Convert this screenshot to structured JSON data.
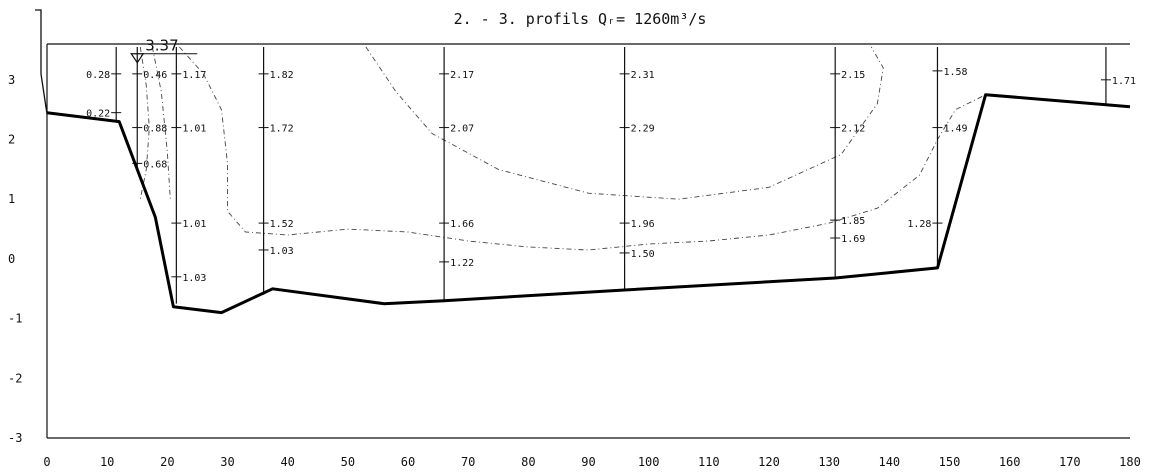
{
  "chart_data": {
    "type": "line",
    "title": "2. - 3. profils Qᵣ= 1260m³/s",
    "xlabel": "",
    "ylabel": "",
    "xlim": [
      0,
      180
    ],
    "ylim": [
      -3,
      3.6
    ],
    "x_ticks": [
      "0",
      "10",
      "20",
      "30",
      "40",
      "50",
      "60",
      "70",
      "80",
      "90",
      "100",
      "110",
      "120",
      "130",
      "140",
      "150",
      "160",
      "170",
      "180"
    ],
    "y_ticks": [
      "3",
      "2",
      "1",
      "0",
      "-1",
      "-2",
      "-3"
    ],
    "water_level": {
      "x": 15,
      "y": 3.37,
      "label": "3.37"
    },
    "bed_profile": [
      {
        "x": 0,
        "y": 2.45
      },
      {
        "x": 12,
        "y": 2.3
      },
      {
        "x": 18,
        "y": 0.7
      },
      {
        "x": 21,
        "y": -0.8
      },
      {
        "x": 29,
        "y": -0.9
      },
      {
        "x": 37.5,
        "y": -0.5
      },
      {
        "x": 56,
        "y": -0.75
      },
      {
        "x": 66,
        "y": -0.7
      },
      {
        "x": 96,
        "y": -0.52
      },
      {
        "x": 131,
        "y": -0.32
      },
      {
        "x": 148,
        "y": -0.15
      },
      {
        "x": 156,
        "y": 2.75
      },
      {
        "x": 180,
        "y": 2.55
      }
    ],
    "verticals": [
      {
        "x": 11.5,
        "y_top": 3.55,
        "y_bottom": 2.3,
        "readings": [
          {
            "y": 3.1,
            "label": "0.28",
            "side": "left"
          },
          {
            "y": 2.45,
            "label": "0.22",
            "side": "left"
          }
        ]
      },
      {
        "x": 15,
        "y_top": 3.55,
        "y_bottom": 1.5,
        "readings": [
          {
            "y": 3.1,
            "label": "0.46",
            "side": "right"
          },
          {
            "y": 2.2,
            "label": "0.88",
            "side": "right"
          },
          {
            "y": 1.6,
            "label": "0.68",
            "side": "right"
          }
        ]
      },
      {
        "x": 21.5,
        "y_top": 3.55,
        "y_bottom": -0.75,
        "readings": [
          {
            "y": 3.1,
            "label": "1.17",
            "side": "right"
          },
          {
            "y": 2.2,
            "label": "1.01",
            "side": "right"
          },
          {
            "y": 0.6,
            "label": "1.01",
            "side": "right"
          },
          {
            "y": -0.3,
            "label": "1.03",
            "side": "right"
          }
        ]
      },
      {
        "x": 36,
        "y_top": 3.55,
        "y_bottom": -0.6,
        "readings": [
          {
            "y": 3.1,
            "label": "1.82",
            "side": "right"
          },
          {
            "y": 2.2,
            "label": "1.72",
            "side": "right"
          },
          {
            "y": 0.6,
            "label": "1.52",
            "side": "right"
          },
          {
            "y": 0.15,
            "label": "1.03",
            "side": "right"
          }
        ]
      },
      {
        "x": 66,
        "y_top": 3.55,
        "y_bottom": -0.7,
        "readings": [
          {
            "y": 3.1,
            "label": "2.17",
            "side": "right"
          },
          {
            "y": 2.2,
            "label": "2.07",
            "side": "right"
          },
          {
            "y": 0.6,
            "label": "1.66",
            "side": "right"
          },
          {
            "y": -0.05,
            "label": "1.22",
            "side": "right"
          }
        ]
      },
      {
        "x": 96,
        "y_top": 3.55,
        "y_bottom": -0.52,
        "readings": [
          {
            "y": 3.1,
            "label": "2.31",
            "side": "right"
          },
          {
            "y": 2.2,
            "label": "2.29",
            "side": "right"
          },
          {
            "y": 0.6,
            "label": "1.96",
            "side": "right"
          },
          {
            "y": 0.1,
            "label": "1.50",
            "side": "right"
          }
        ]
      },
      {
        "x": 131,
        "y_top": 3.55,
        "y_bottom": -0.32,
        "readings": [
          {
            "y": 3.1,
            "label": "2.15",
            "side": "right"
          },
          {
            "y": 2.2,
            "label": "2.12",
            "side": "right"
          },
          {
            "y": 0.65,
            "label": "1.85",
            "side": "right"
          },
          {
            "y": 0.35,
            "label": "1.69",
            "side": "right"
          }
        ]
      },
      {
        "x": 148,
        "y_top": 3.55,
        "y_bottom": -0.15,
        "readings": [
          {
            "y": 3.15,
            "label": "1.58",
            "side": "right"
          },
          {
            "y": 2.2,
            "label": "1.49",
            "side": "right"
          },
          {
            "y": 0.6,
            "label": "1.28",
            "side": "left"
          }
        ]
      },
      {
        "x": 176,
        "y_top": 3.55,
        "y_bottom": 2.6,
        "readings": [
          {
            "y": 3.0,
            "label": "1.71",
            "side": "right"
          }
        ]
      }
    ],
    "isolines": [
      [
        {
          "x": 15.5,
          "y": 3.55
        },
        {
          "x": 16.5,
          "y": 2.9
        },
        {
          "x": 17,
          "y": 2.2
        },
        {
          "x": 16.5,
          "y": 1.5
        },
        {
          "x": 15.5,
          "y": 1.0
        }
      ],
      [
        {
          "x": 17.5,
          "y": 3.55
        },
        {
          "x": 19,
          "y": 2.8
        },
        {
          "x": 20,
          "y": 1.8
        },
        {
          "x": 20.5,
          "y": 1.0
        }
      ],
      [
        {
          "x": 22,
          "y": 3.55
        },
        {
          "x": 26,
          "y": 3.1
        },
        {
          "x": 29,
          "y": 2.5
        },
        {
          "x": 30,
          "y": 1.6
        },
        {
          "x": 30,
          "y": 0.8
        },
        {
          "x": 33,
          "y": 0.45
        },
        {
          "x": 40,
          "y": 0.4
        },
        {
          "x": 50,
          "y": 0.5
        },
        {
          "x": 60,
          "y": 0.45
        },
        {
          "x": 70,
          "y": 0.3
        },
        {
          "x": 80,
          "y": 0.2
        },
        {
          "x": 90,
          "y": 0.15
        },
        {
          "x": 100,
          "y": 0.25
        },
        {
          "x": 110,
          "y": 0.3
        },
        {
          "x": 120,
          "y": 0.4
        },
        {
          "x": 130,
          "y": 0.6
        },
        {
          "x": 138,
          "y": 0.85
        },
        {
          "x": 145,
          "y": 1.4
        },
        {
          "x": 148,
          "y": 2.0
        },
        {
          "x": 151,
          "y": 2.5
        },
        {
          "x": 156,
          "y": 2.75
        }
      ],
      [
        {
          "x": 53,
          "y": 3.55
        },
        {
          "x": 58,
          "y": 2.8
        },
        {
          "x": 64,
          "y": 2.1
        },
        {
          "x": 75,
          "y": 1.5
        },
        {
          "x": 90,
          "y": 1.1
        },
        {
          "x": 105,
          "y": 1.0
        },
        {
          "x": 120,
          "y": 1.2
        },
        {
          "x": 132,
          "y": 1.75
        },
        {
          "x": 138,
          "y": 2.6
        },
        {
          "x": 139,
          "y": 3.2
        },
        {
          "x": 137,
          "y": 3.55
        }
      ]
    ]
  }
}
